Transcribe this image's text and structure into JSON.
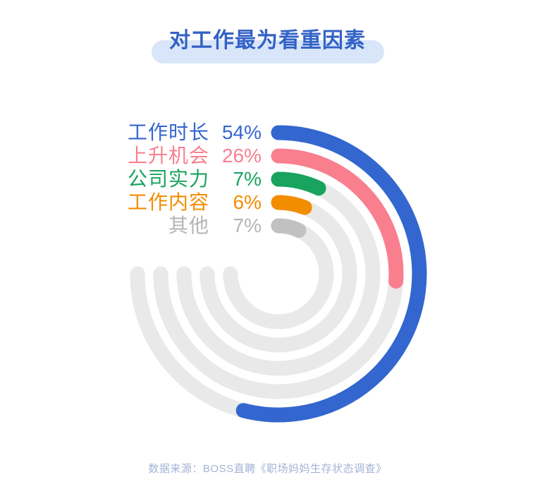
{
  "title": "对工作最为看重因素",
  "source": "数据来源：BOSS直聘《职场妈妈生存状态调查》",
  "colors": {
    "title_text": "#3362c6",
    "title_pill_bg": "#d9e6f9",
    "source_text": "#a2b2d6",
    "background": "#ffffff"
  },
  "chart_data": {
    "type": "radial-bar",
    "title": "对工作最为看重因素",
    "categories": [
      "工作时长",
      "上升机会",
      "公司实力",
      "工作内容",
      "其他"
    ],
    "values": [
      54,
      26,
      7,
      6,
      7
    ],
    "value_labels": [
      "54%",
      "26%",
      "7%",
      "6%",
      "7%"
    ],
    "unit": "%",
    "full_circle_pct": 100,
    "start_angle_deg": 0,
    "direction": "clockwise",
    "track_sweep_deg": 270,
    "track_color": "#e9e9e9",
    "series_colors": [
      "#3366cf",
      "#f97f8f",
      "#18a35f",
      "#f28d00",
      "#c1c1c1"
    ],
    "label_colors": [
      "#3366cf",
      "#f97f8f",
      "#18a35f",
      "#f28d00",
      "#b5b5b5"
    ],
    "legend_position": "top-left",
    "grid": false
  }
}
